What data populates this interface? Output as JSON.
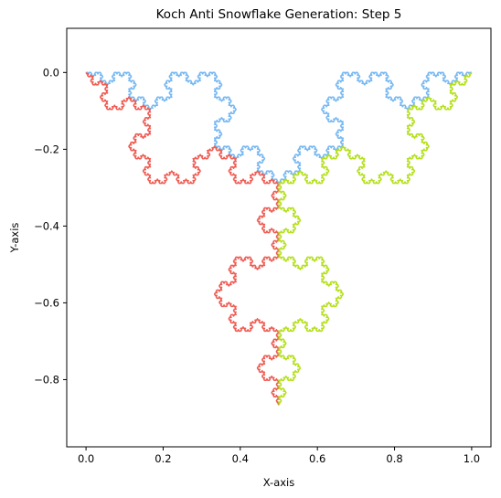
{
  "chart_data": {
    "type": "line",
    "title": "Koch Anti Snowflake Generation: Step 5",
    "xlabel": "X-axis",
    "ylabel": "Y-axis",
    "xlim": [
      -0.05,
      1.05
    ],
    "ylim": [
      -0.975,
      0.115
    ],
    "xticks": [
      0.0,
      0.2,
      0.4,
      0.6,
      0.8,
      1.0
    ],
    "xtick_labels": [
      "0.0",
      "0.2",
      "0.4",
      "0.6",
      "0.8",
      "1.0"
    ],
    "yticks": [
      0.0,
      -0.2,
      -0.4,
      -0.6,
      -0.8
    ],
    "ytick_labels": [
      "0.0",
      "−0.2",
      "−0.4",
      "−0.6",
      "−0.8"
    ],
    "grid": false,
    "legend": "none",
    "iterations": 5,
    "series": [
      {
        "start": [
          1.0,
          0.0
        ],
        "end": [
          0.0,
          0.0
        ],
        "color": "#78b9f3"
      },
      {
        "start": [
          0.0,
          0.0
        ],
        "end": [
          0.5,
          -0.866
        ],
        "color": "#ef5d54"
      },
      {
        "start": [
          0.5,
          -0.866
        ],
        "end": [
          1.0,
          0.0
        ],
        "color": "#b5e01e"
      }
    ]
  }
}
